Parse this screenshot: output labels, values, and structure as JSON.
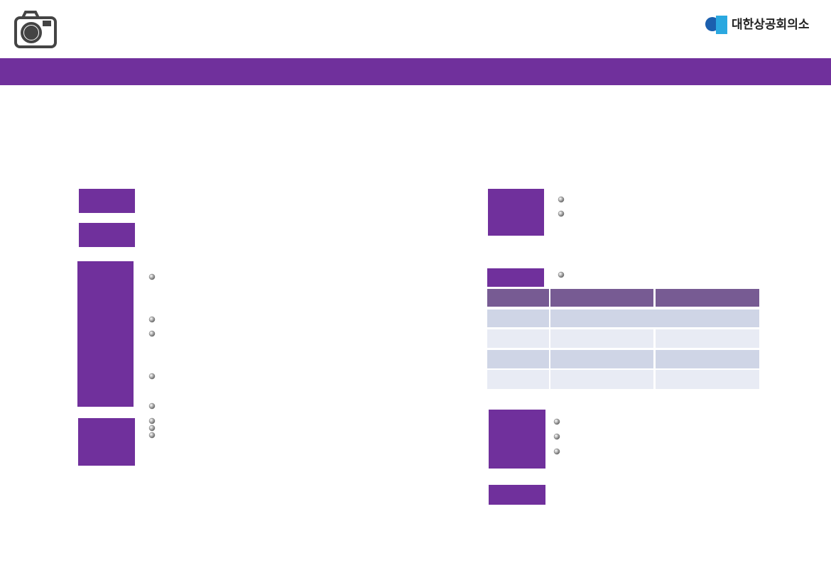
{
  "logo": {
    "text": "대한상공회의소"
  }
}
